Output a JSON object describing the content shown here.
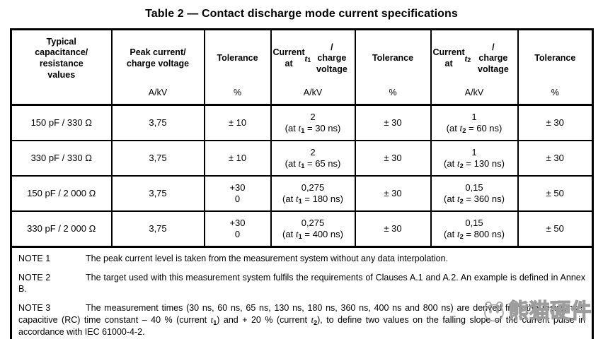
{
  "title": "Table 2 — Contact discharge mode current specifications",
  "table": {
    "columns": [
      {
        "label": "Typical\ncapacitance/\nresistance\nvalues",
        "unit": ""
      },
      {
        "label": "Peak current/\ncharge voltage",
        "unit": "A/kV"
      },
      {
        "label": "Tolerance",
        "unit": "%"
      },
      {
        "label": "Current at t₁/\ncharge voltage",
        "unit": "A/kV"
      },
      {
        "label": "Tolerance",
        "unit": "%"
      },
      {
        "label": "Current at t₂/\ncharge voltage",
        "unit": "A/kV"
      },
      {
        "label": "Tolerance",
        "unit": "%"
      }
    ],
    "rows": [
      [
        "150 pF / 330 Ω",
        "3,75",
        "± 10",
        "2\n(at t₁ = 30 ns)",
        "± 30",
        "1\n(at t₂ = 60 ns)",
        "± 30"
      ],
      [
        "330 pF / 330 Ω",
        "3,75",
        "± 10",
        "2\n(at t₁ = 65 ns)",
        "± 30",
        "1\n(at t₂ = 130 ns)",
        "± 30"
      ],
      [
        "150 pF / 2 000 Ω",
        "3,75",
        "+30\n0",
        "0,275\n(at t₁ = 180 ns)",
        "± 30",
        "0,15\n(at t₂ = 360 ns)",
        "± 50"
      ],
      [
        "330 pF / 2 000 Ω",
        "3,75",
        "+30\n0",
        "0,275\n(at t₁ = 400 ns)",
        "± 30",
        "0,15\n(at t₂ = 800 ns)",
        "± 50"
      ]
    ]
  },
  "notes": [
    {
      "label": "NOTE 1",
      "text": "The peak current level is taken from the measurement system without any data interpolation."
    },
    {
      "label": "NOTE 2",
      "text": "The target used with this measurement system fulfils the requirements of Clauses A.1 and A.2. An example is defined in Annex B."
    },
    {
      "label": "NOTE 3",
      "text": "The measurement times (30 ns, 60 ns, 65 ns, 130 ns, 180 ns, 360 ns, 400 ns and 800 ns) are derived from the resistance-capacitive (RC) time constant – 40 % (current t₁) and + 20 % (current t₂), to define two values on the falling slope of the current pulse in accordance with IEC 61000-4-2."
    }
  ],
  "watermark": {
    "text": "熊猫硬件",
    "icon": "panda-icon",
    "color": "#9d9d9d"
  }
}
